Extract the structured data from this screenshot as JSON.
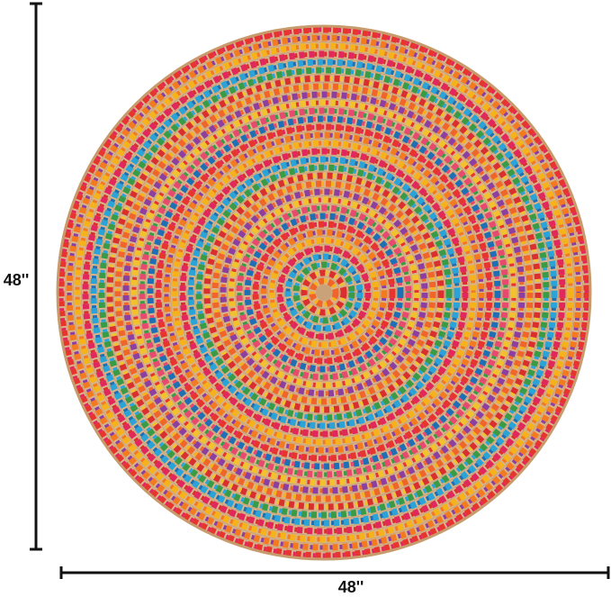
{
  "dimensions": {
    "height_label": "48''",
    "width_label": "48''"
  }
}
